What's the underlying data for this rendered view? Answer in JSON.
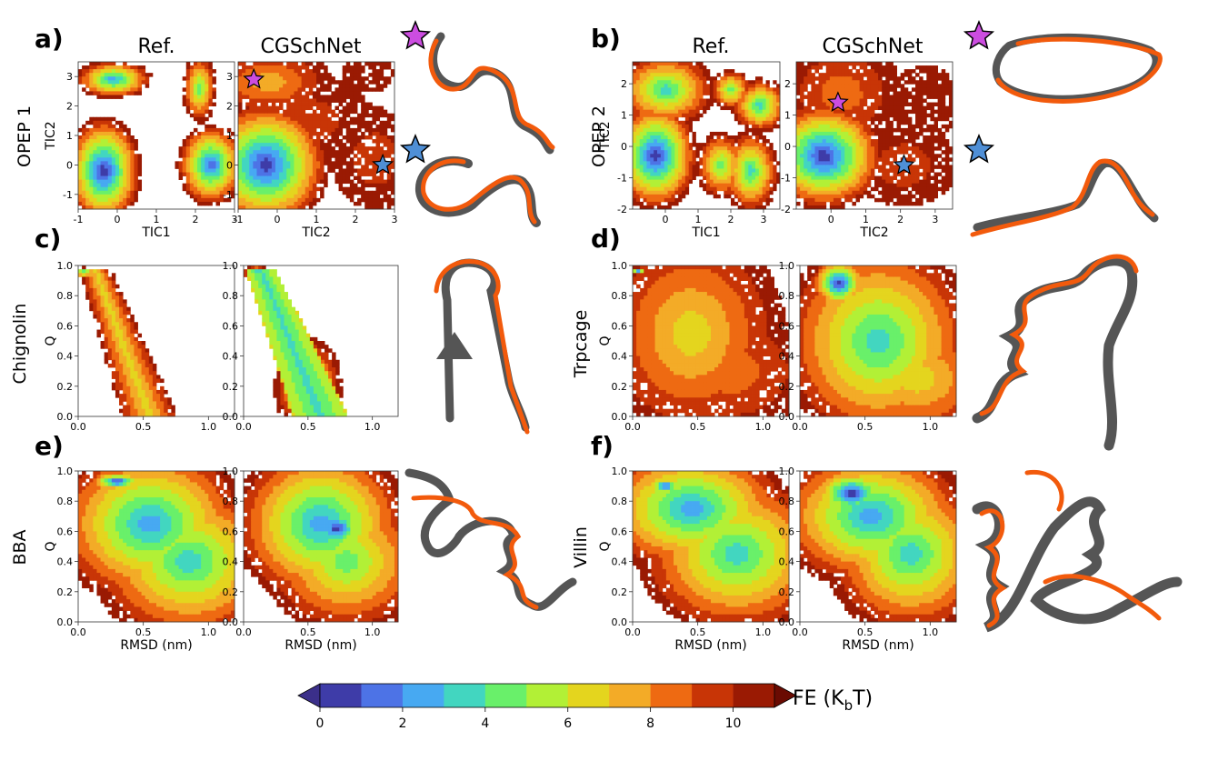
{
  "figure": {
    "panels": [
      {
        "letter": "a)",
        "row_label": "OPEP 1"
      },
      {
        "letter": "b)",
        "row_label": "OPEP 2"
      },
      {
        "letter": "c)",
        "row_label": "Chignolin"
      },
      {
        "letter": "d)",
        "row_label": "Trpcage"
      },
      {
        "letter": "e)",
        "row_label": "BBA"
      },
      {
        "letter": "f)",
        "row_label": "Villin"
      }
    ],
    "column_titles": [
      "Ref.",
      "CGSchNet"
    ],
    "colorbar": {
      "label_main": "FE (K",
      "label_sub": "b",
      "label_tail": "T)",
      "ticks": [
        "0",
        "2",
        "4",
        "6",
        "8",
        "10"
      ],
      "colors": [
        "#3b2f8a",
        "#3e3ca8",
        "#4d73e6",
        "#47a9f2",
        "#42d6c0",
        "#69f06a",
        "#b2f036",
        "#e4d51e",
        "#f3ab27",
        "#ee6a12",
        "#c83506",
        "#9a1a03",
        "#6a0b02"
      ],
      "min": 0,
      "max": 11
    },
    "colors": {
      "reference_structure": "#555555",
      "model_structure": "#f25a0c",
      "star_magenta": "#cc4de0",
      "star_blue": "#4f8fd6"
    },
    "icons": [
      "star-icon"
    ]
  },
  "chart_data": [
    {
      "type": "heatmap",
      "panel": "a)",
      "subplot": "Ref.",
      "xlabel": "TIC1",
      "ylabel": "TIC2",
      "xlim": [
        -1,
        3
      ],
      "ylim": [
        -1.5,
        3.5
      ],
      "xticks": [
        "-1",
        "0",
        "1",
        "2",
        "3"
      ],
      "yticks": [
        "-1",
        "0",
        "1",
        "2",
        "3"
      ],
      "basins": [
        {
          "x": -0.35,
          "y": -0.2,
          "sx": 0.45,
          "sy": 0.85,
          "depth": 1.0,
          "core_fe": 0
        },
        {
          "x": -0.1,
          "y": 2.9,
          "sx": 0.45,
          "sy": 0.3,
          "depth": 0.9,
          "core_fe": 2
        },
        {
          "x": 2.1,
          "y": 2.6,
          "sx": 0.2,
          "sy": 0.55,
          "depth": 0.75,
          "core_fe": 4
        },
        {
          "x": 2.4,
          "y": 0.0,
          "sx": 0.4,
          "sy": 0.65,
          "depth": 0.85,
          "core_fe": 1
        }
      ]
    },
    {
      "type": "heatmap",
      "panel": "a)",
      "subplot": "CGSchNet",
      "xlabel": "TIC2",
      "ylabel": "",
      "xlim": [
        -1,
        3
      ],
      "ylim": [
        -1.5,
        3.5
      ],
      "xticks": [
        "-1",
        "0",
        "1",
        "2",
        "3"
      ],
      "yticks": [
        "-1",
        "0",
        "1",
        "2",
        "3"
      ],
      "basins": [
        {
          "x": -0.3,
          "y": 0.0,
          "sx": 0.75,
          "sy": 1.0,
          "depth": 1.0,
          "core_fe": 0
        },
        {
          "x": -0.2,
          "y": 2.8,
          "sx": 0.75,
          "sy": 0.55,
          "depth": 0.85,
          "core_fe": 7
        },
        {
          "x": 0.6,
          "y": 1.5,
          "sx": 0.9,
          "sy": 0.7,
          "depth": 0.55,
          "core_fe": 9
        },
        {
          "x": 2.3,
          "y": 3.1,
          "sx": 0.3,
          "sy": 0.3,
          "depth": 0.6,
          "core_fe": 10
        },
        {
          "x": 2.5,
          "y": 0.2,
          "sx": 0.5,
          "sy": 0.8,
          "depth": 0.7,
          "core_fe": 9
        }
      ],
      "markers": [
        {
          "x": -0.6,
          "y": 2.9,
          "color": "#cc4de0"
        },
        {
          "x": 2.7,
          "y": 0.0,
          "color": "#4f8fd6"
        }
      ]
    },
    {
      "type": "heatmap",
      "panel": "b)",
      "subplot": "Ref.",
      "xlabel": "TIC1",
      "ylabel": "TIC2",
      "xlim": [
        -1,
        3.5
      ],
      "ylim": [
        -2,
        2.7
      ],
      "xticks": [
        "0",
        "1",
        "2",
        "3"
      ],
      "yticks": [
        "-2",
        "-1",
        "0",
        "1",
        "2"
      ],
      "basins": [
        {
          "x": -0.3,
          "y": -0.3,
          "sx": 0.6,
          "sy": 0.8,
          "depth": 1.0,
          "core_fe": 0
        },
        {
          "x": 0.0,
          "y": 1.8,
          "sx": 0.7,
          "sy": 0.55,
          "depth": 0.8,
          "core_fe": 3
        },
        {
          "x": 2.9,
          "y": 1.3,
          "sx": 0.4,
          "sy": 0.4,
          "depth": 0.7,
          "core_fe": 3
        },
        {
          "x": 2.0,
          "y": 1.8,
          "sx": 0.3,
          "sy": 0.3,
          "depth": 0.6,
          "core_fe": 4
        },
        {
          "x": 2.6,
          "y": -0.8,
          "sx": 0.4,
          "sy": 0.6,
          "depth": 0.75,
          "core_fe": 3
        },
        {
          "x": 1.7,
          "y": -0.6,
          "sx": 0.35,
          "sy": 0.5,
          "depth": 0.6,
          "core_fe": 4
        }
      ]
    },
    {
      "type": "heatmap",
      "panel": "b)",
      "subplot": "CGSchNet",
      "xlabel": "TIC2",
      "ylabel": "",
      "xlim": [
        -1,
        3.5
      ],
      "ylim": [
        -2,
        2.7
      ],
      "xticks": [
        "0",
        "1",
        "2",
        "3"
      ],
      "yticks": [
        "-2",
        "-1",
        "0",
        "1",
        "2"
      ],
      "basins": [
        {
          "x": -0.2,
          "y": -0.3,
          "sx": 0.8,
          "sy": 0.8,
          "depth": 1.0,
          "core_fe": 0
        },
        {
          "x": 0.3,
          "y": 1.7,
          "sx": 0.8,
          "sy": 0.8,
          "depth": 0.7,
          "core_fe": 8
        },
        {
          "x": 2.1,
          "y": -0.6,
          "sx": 0.7,
          "sy": 0.6,
          "depth": 0.75,
          "core_fe": 9
        },
        {
          "x": 2.7,
          "y": 1.4,
          "sx": 0.45,
          "sy": 0.55,
          "depth": 0.6,
          "core_fe": 10
        }
      ],
      "markers": [
        {
          "x": 0.2,
          "y": 1.4,
          "color": "#cc4de0"
        },
        {
          "x": 2.1,
          "y": -0.6,
          "color": "#4f8fd6"
        }
      ]
    },
    {
      "type": "heatmap",
      "panel": "c)",
      "subplot": "Ref.",
      "xlabel": "",
      "ylabel": "Q",
      "xlim": [
        0,
        1.2
      ],
      "ylim": [
        0,
        1.0
      ],
      "xticks": [
        "0.0",
        "0.5",
        "1.0"
      ],
      "yticks": [
        "0.0",
        "0.2",
        "0.4",
        "0.6",
        "0.8",
        "1.0"
      ],
      "band": {
        "top_x": 0.12,
        "bottom_x": 0.55,
        "width_top": 0.12,
        "width_bottom": 0.22,
        "bias": 0.35
      },
      "basins": [
        {
          "x": 0.04,
          "y": 0.955,
          "sx": 0.04,
          "sy": 0.015,
          "depth": 1.0,
          "core_fe": 2
        }
      ]
    },
    {
      "type": "heatmap",
      "panel": "c)",
      "subplot": "CGSchNet",
      "xlabel": "",
      "ylabel": "",
      "xlim": [
        0,
        1.2
      ],
      "ylim": [
        0,
        1.0
      ],
      "xticks": [
        "0.0",
        "0.5",
        "1.0"
      ],
      "yticks": [
        "0.0",
        "0.2",
        "0.4",
        "0.6",
        "0.8",
        "1.0"
      ],
      "band": {
        "top_x": 0.12,
        "bottom_x": 0.6,
        "width_top": 0.11,
        "width_bottom": 0.22,
        "bias": 0.9
      },
      "basins": [
        {
          "x": 0.1,
          "y": 0.955,
          "sx": 0.05,
          "sy": 0.02,
          "depth": 1.0,
          "core_fe": 2
        },
        {
          "x": 0.5,
          "y": 0.2,
          "sx": 0.12,
          "sy": 0.15,
          "depth": 0.4,
          "core_fe": 4
        }
      ]
    },
    {
      "type": "heatmap",
      "panel": "d)",
      "subplot": "Ref.",
      "xlabel": "",
      "ylabel": "Q",
      "xlim": [
        0,
        1.2
      ],
      "ylim": [
        0,
        1.0
      ],
      "xticks": [
        "0.0",
        "0.5",
        "1.0"
      ],
      "yticks": [
        "0.0",
        "0.2",
        "0.4",
        "0.6",
        "0.8",
        "1.0"
      ],
      "basins": [
        {
          "x": 0.04,
          "y": 0.96,
          "sx": 0.03,
          "sy": 0.012,
          "depth": 1.0,
          "core_fe": 1
        },
        {
          "x": 0.45,
          "y": 0.55,
          "sx": 0.33,
          "sy": 0.33,
          "depth": 0.75,
          "core_fe": 6
        },
        {
          "x": 0.75,
          "y": 0.3,
          "sx": 0.3,
          "sy": 0.2,
          "depth": 0.5,
          "core_fe": 8
        }
      ]
    },
    {
      "type": "heatmap",
      "panel": "d)",
      "subplot": "CGSchNet",
      "xlabel": "",
      "ylabel": "",
      "xlim": [
        0,
        1.2
      ],
      "ylim": [
        0,
        1.0
      ],
      "xticks": [
        "0.0",
        "0.5",
        "1.0"
      ],
      "yticks": [
        "0.0",
        "0.2",
        "0.4",
        "0.6",
        "0.8",
        "1.0"
      ],
      "basins": [
        {
          "x": 0.3,
          "y": 0.88,
          "sx": 0.1,
          "sy": 0.08,
          "depth": 1.0,
          "core_fe": 0
        },
        {
          "x": 0.6,
          "y": 0.5,
          "sx": 0.35,
          "sy": 0.32,
          "depth": 0.85,
          "core_fe": 3
        },
        {
          "x": 0.9,
          "y": 0.25,
          "sx": 0.3,
          "sy": 0.2,
          "depth": 0.5,
          "core_fe": 6
        }
      ]
    },
    {
      "type": "heatmap",
      "panel": "e)",
      "subplot": "Ref.",
      "xlabel": "RMSD (nm)",
      "ylabel": "Q",
      "xlim": [
        0,
        1.2
      ],
      "ylim": [
        0,
        1.0
      ],
      "xticks": [
        "0.0",
        "0.5",
        "1.0"
      ],
      "yticks": [
        "0.0",
        "0.2",
        "0.4",
        "0.6",
        "0.8",
        "1.0"
      ],
      "basins": [
        {
          "x": 0.3,
          "y": 0.93,
          "sx": 0.1,
          "sy": 0.03,
          "depth": 1.0,
          "core_fe": 0
        },
        {
          "x": 0.55,
          "y": 0.65,
          "sx": 0.35,
          "sy": 0.25,
          "depth": 0.8,
          "core_fe": 2
        },
        {
          "x": 0.85,
          "y": 0.4,
          "sx": 0.35,
          "sy": 0.25,
          "depth": 0.65,
          "core_fe": 3
        }
      ]
    },
    {
      "type": "heatmap",
      "panel": "e)",
      "subplot": "CGSchNet",
      "xlabel": "RMSD (nm)",
      "ylabel": "",
      "xlim": [
        0,
        1.2
      ],
      "ylim": [
        0,
        1.0
      ],
      "xticks": [
        "0.0",
        "0.5",
        "1.0"
      ],
      "yticks": [
        "0.0",
        "0.2",
        "0.4",
        "0.6",
        "0.8",
        "1.0"
      ],
      "basins": [
        {
          "x": 0.72,
          "y": 0.62,
          "sx": 0.12,
          "sy": 0.08,
          "depth": 1.0,
          "core_fe": 0
        },
        {
          "x": 0.6,
          "y": 0.65,
          "sx": 0.32,
          "sy": 0.25,
          "depth": 0.85,
          "core_fe": 2
        },
        {
          "x": 0.8,
          "y": 0.4,
          "sx": 0.3,
          "sy": 0.22,
          "depth": 0.6,
          "core_fe": 4
        }
      ]
    },
    {
      "type": "heatmap",
      "panel": "f)",
      "subplot": "Ref.",
      "xlabel": "RMSD (nm)",
      "ylabel": "Q",
      "xlim": [
        0,
        1.2
      ],
      "ylim": [
        0,
        1.0
      ],
      "xticks": [
        "0.0",
        "0.5",
        "1.0"
      ],
      "yticks": [
        "0.0",
        "0.2",
        "0.4",
        "0.6",
        "0.8",
        "1.0"
      ],
      "basins": [
        {
          "x": 0.25,
          "y": 0.9,
          "sx": 0.06,
          "sy": 0.03,
          "depth": 1.0,
          "core_fe": 0
        },
        {
          "x": 0.45,
          "y": 0.75,
          "sx": 0.35,
          "sy": 0.2,
          "depth": 0.8,
          "core_fe": 2
        },
        {
          "x": 0.8,
          "y": 0.45,
          "sx": 0.35,
          "sy": 0.25,
          "depth": 0.7,
          "core_fe": 3
        }
      ]
    },
    {
      "type": "heatmap",
      "panel": "f)",
      "subplot": "CGSchNet",
      "xlabel": "RMSD (nm)",
      "ylabel": "",
      "xlim": [
        0,
        1.2
      ],
      "ylim": [
        0,
        1.0
      ],
      "xticks": [
        "0.0",
        "0.5",
        "1.0"
      ],
      "yticks": [
        "0.0",
        "0.2",
        "0.4",
        "0.6",
        "0.8",
        "1.0"
      ],
      "basins": [
        {
          "x": 0.4,
          "y": 0.85,
          "sx": 0.15,
          "sy": 0.08,
          "depth": 1.0,
          "core_fe": 0
        },
        {
          "x": 0.55,
          "y": 0.7,
          "sx": 0.35,
          "sy": 0.22,
          "depth": 0.85,
          "core_fe": 2
        },
        {
          "x": 0.85,
          "y": 0.45,
          "sx": 0.3,
          "sy": 0.25,
          "depth": 0.65,
          "core_fe": 3
        }
      ]
    }
  ]
}
